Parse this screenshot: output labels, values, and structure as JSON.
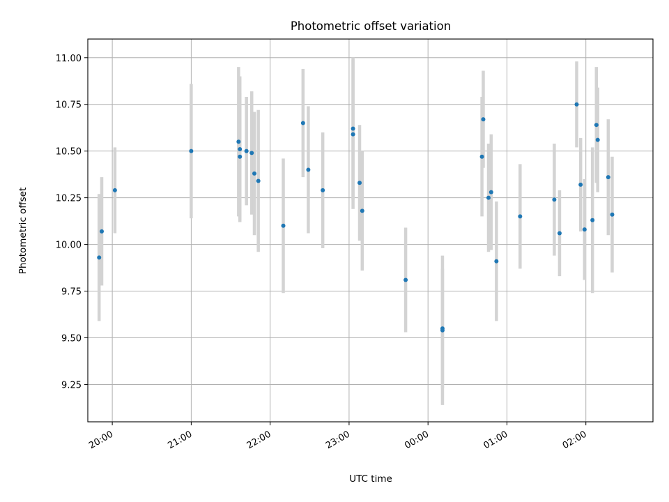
{
  "chart_data": {
    "type": "scatter",
    "title": "Photometric offset variation",
    "xlabel": "UTC time",
    "ylabel": "Photometric offset",
    "x_axis": {
      "type": "time",
      "range_hours": [
        19.69,
        26.85
      ],
      "ticks": [
        {
          "hour": 20,
          "label": "20:00"
        },
        {
          "hour": 21,
          "label": "21:00"
        },
        {
          "hour": 22,
          "label": "22:00"
        },
        {
          "hour": 23,
          "label": "23:00"
        },
        {
          "hour": 24,
          "label": "00:00"
        },
        {
          "hour": 25,
          "label": "01:00"
        },
        {
          "hour": 26,
          "label": "02:00"
        }
      ]
    },
    "y_axis": {
      "range": [
        9.05,
        11.1
      ],
      "ticks": [
        {
          "value": 9.25,
          "label": "9.25"
        },
        {
          "value": 9.5,
          "label": "9.50"
        },
        {
          "value": 9.75,
          "label": "9.75"
        },
        {
          "value": 10.0,
          "label": "10.00"
        },
        {
          "value": 10.25,
          "label": "10.25"
        },
        {
          "value": 10.5,
          "label": "10.50"
        },
        {
          "value": 10.75,
          "label": "10.75"
        },
        {
          "value": 11.0,
          "label": "11.00"
        }
      ]
    },
    "grid": true,
    "colors": {
      "point": "#1f77b4",
      "errorbar": "#d3d3d3",
      "grid": "#b0b0b0"
    },
    "points": [
      {
        "time": "19:50",
        "y": 9.93,
        "err": 0.34
      },
      {
        "time": "19:52",
        "y": 10.07,
        "err": 0.29
      },
      {
        "time": "20:02",
        "y": 10.29,
        "err": 0.23
      },
      {
        "time": "21:00",
        "y": 10.5,
        "err": 0.36
      },
      {
        "time": "21:36",
        "y": 10.55,
        "err": 0.4
      },
      {
        "time": "21:37",
        "y": 10.51,
        "err": 0.39
      },
      {
        "time": "21:37",
        "y": 10.47,
        "err": 0.34
      },
      {
        "time": "21:42",
        "y": 10.5,
        "err": 0.29
      },
      {
        "time": "21:46",
        "y": 10.49,
        "err": 0.33
      },
      {
        "time": "21:48",
        "y": 10.38,
        "err": 0.33
      },
      {
        "time": "21:51",
        "y": 10.34,
        "err": 0.38
      },
      {
        "time": "22:10",
        "y": 10.1,
        "err": 0.36
      },
      {
        "time": "22:25",
        "y": 10.65,
        "err": 0.29
      },
      {
        "time": "22:29",
        "y": 10.4,
        "err": 0.34
      },
      {
        "time": "22:40",
        "y": 10.29,
        "err": 0.31
      },
      {
        "time": "23:03",
        "y": 10.59,
        "err": 0.4
      },
      {
        "time": "23:03",
        "y": 10.62,
        "err": 0.38
      },
      {
        "time": "23:08",
        "y": 10.33,
        "err": 0.31
      },
      {
        "time": "23:10",
        "y": 10.18,
        "err": 0.32
      },
      {
        "time": "23:43",
        "y": 9.81,
        "err": 0.28
      },
      {
        "time": "00:11",
        "y": 9.55,
        "err": 0.32
      },
      {
        "time": "00:11",
        "y": 9.54,
        "err": 0.4
      },
      {
        "time": "00:41",
        "y": 10.47,
        "err": 0.32
      },
      {
        "time": "00:42",
        "y": 10.67,
        "err": 0.26
      },
      {
        "time": "00:46",
        "y": 10.25,
        "err": 0.29
      },
      {
        "time": "00:48",
        "y": 10.28,
        "err": 0.31
      },
      {
        "time": "00:52",
        "y": 9.91,
        "err": 0.32
      },
      {
        "time": "01:10",
        "y": 10.15,
        "err": 0.28
      },
      {
        "time": "01:36",
        "y": 10.24,
        "err": 0.3
      },
      {
        "time": "01:40",
        "y": 10.06,
        "err": 0.23
      },
      {
        "time": "01:53",
        "y": 10.75,
        "err": 0.23
      },
      {
        "time": "01:56",
        "y": 10.32,
        "err": 0.25
      },
      {
        "time": "01:59",
        "y": 10.08,
        "err": 0.27
      },
      {
        "time": "02:05",
        "y": 10.13,
        "err": 0.39
      },
      {
        "time": "02:08",
        "y": 10.64,
        "err": 0.31
      },
      {
        "time": "02:09",
        "y": 10.56,
        "err": 0.28
      },
      {
        "time": "02:17",
        "y": 10.36,
        "err": 0.31
      },
      {
        "time": "02:20",
        "y": 10.16,
        "err": 0.31
      }
    ]
  }
}
